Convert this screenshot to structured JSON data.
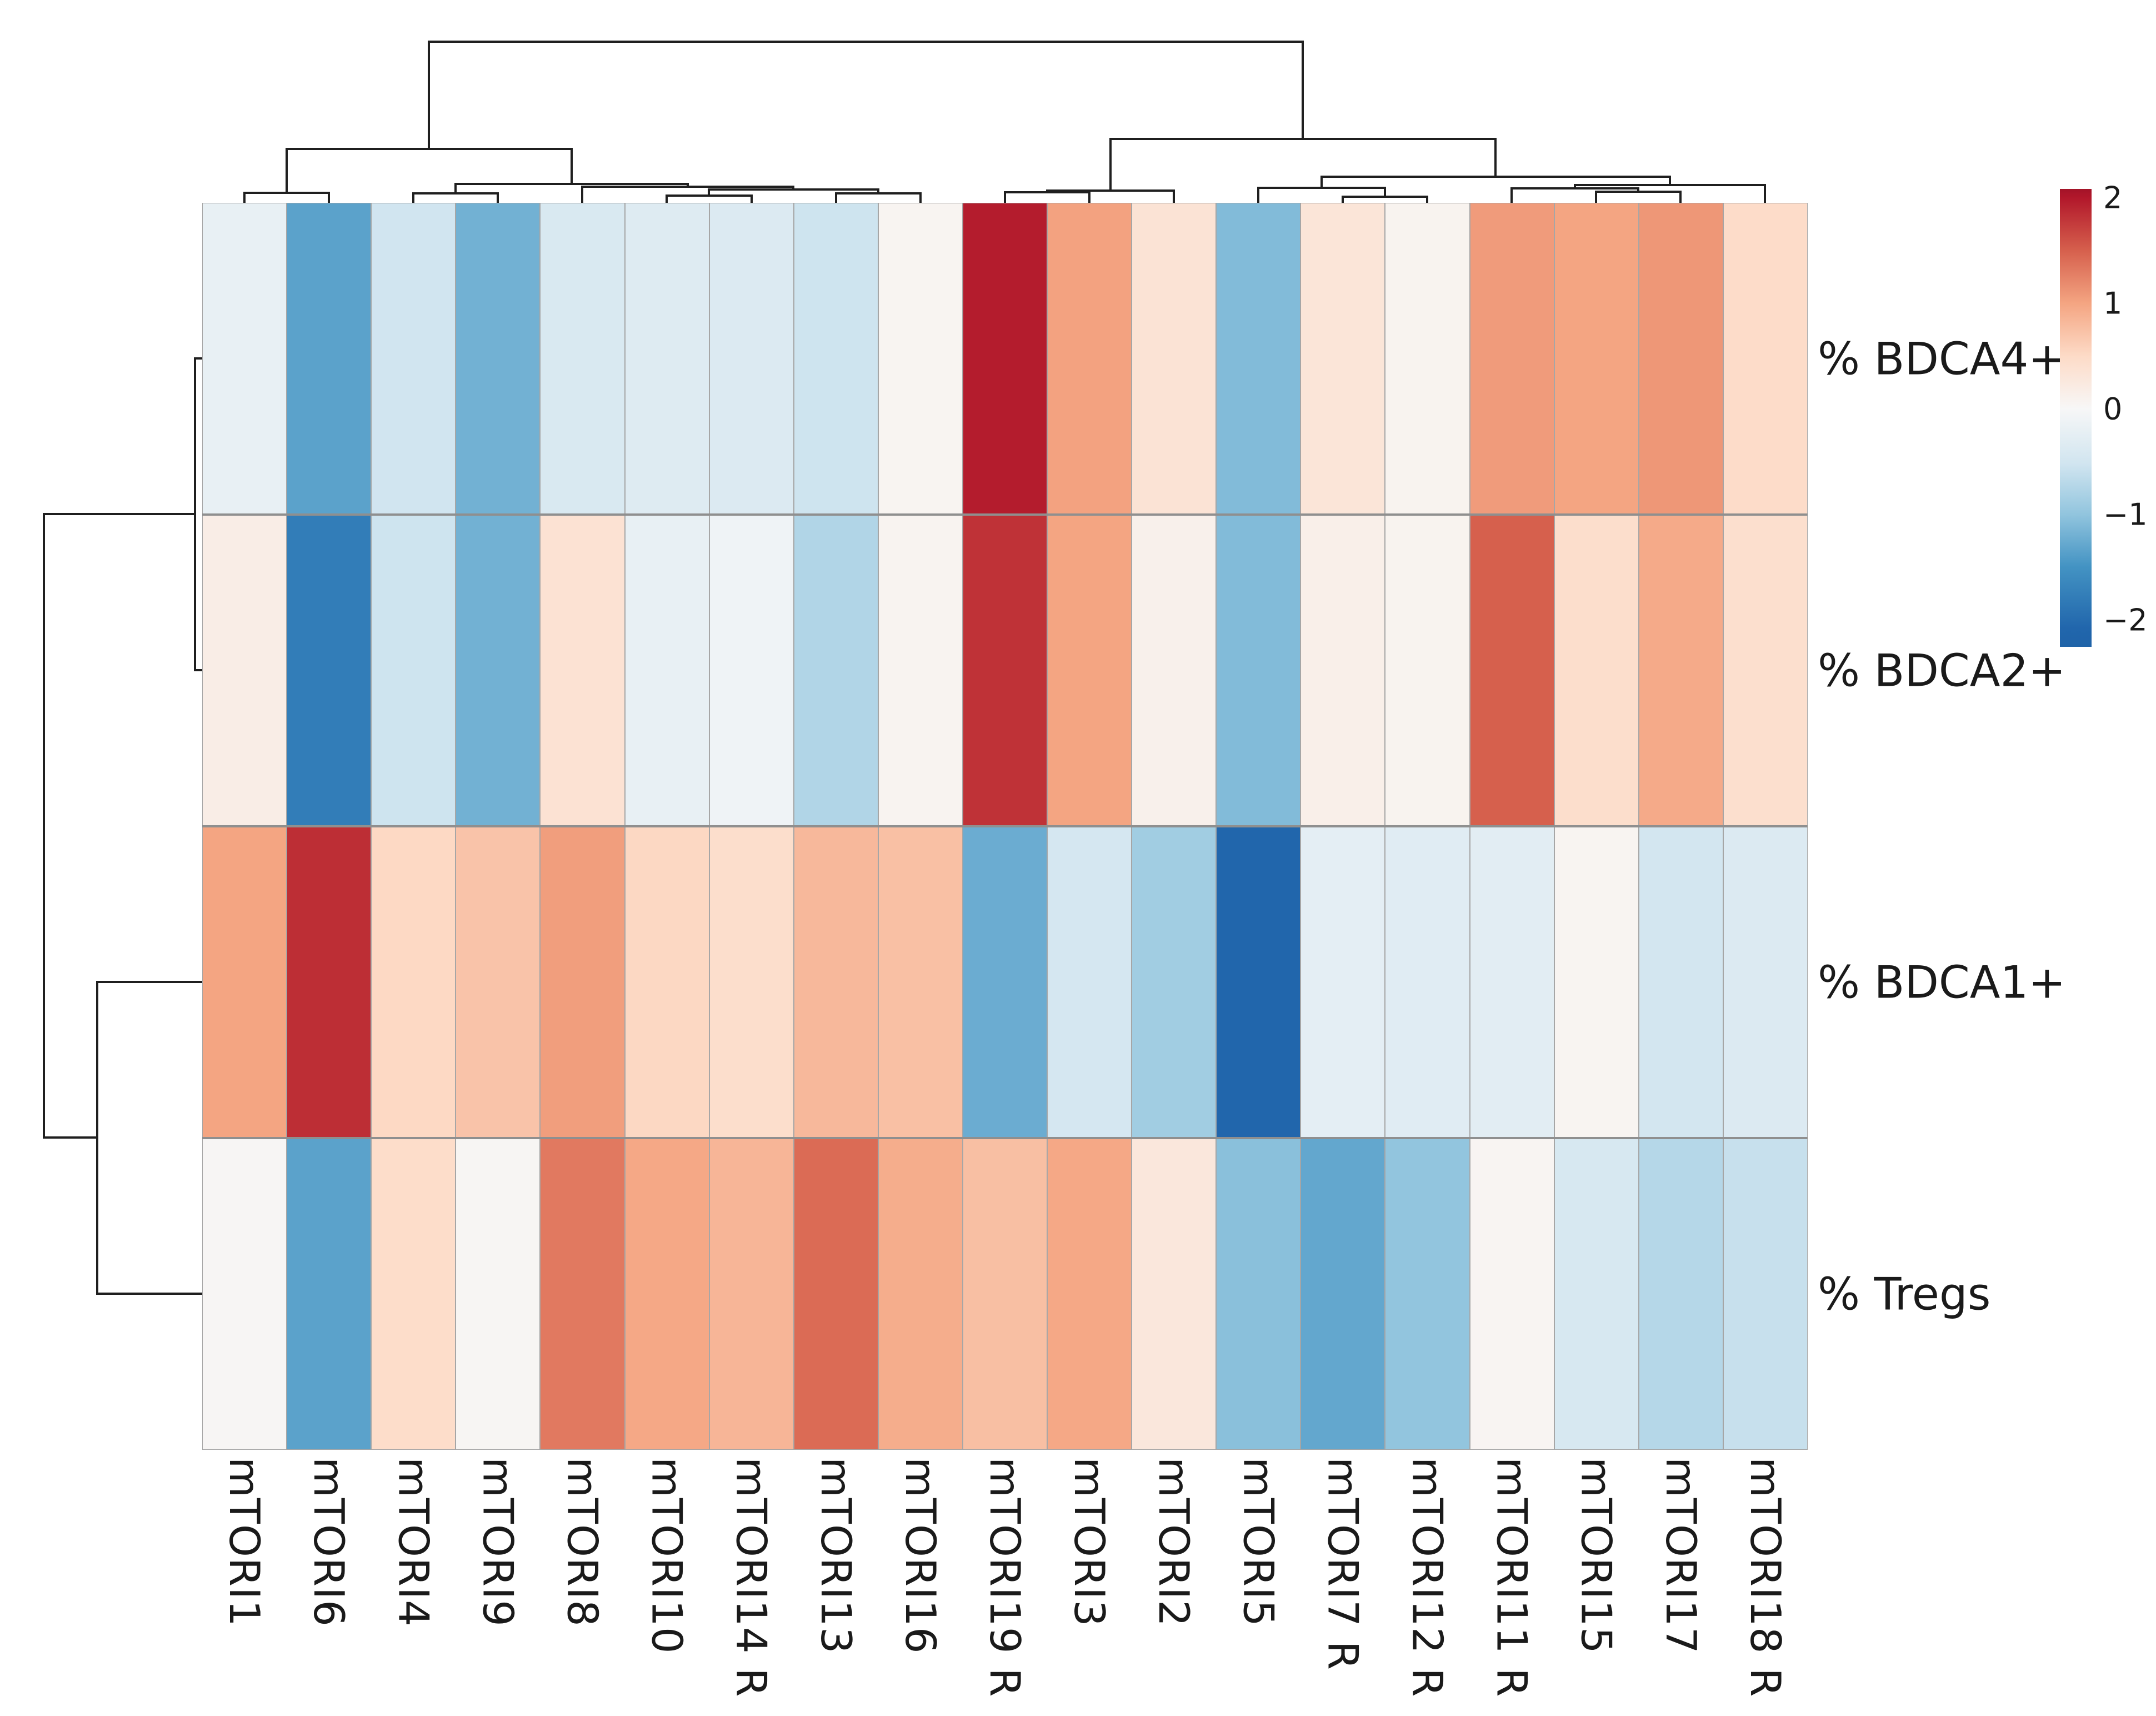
{
  "figure": {
    "background": "#ffffff",
    "text_color": "#1a1a1a",
    "grid_line_color": "#a6a6a6",
    "dendrogram_color": "#1f1f1f"
  },
  "chart_data": {
    "type": "heatmap",
    "title": "",
    "clustered": true,
    "columns": [
      "mTORI1",
      "mTORI6",
      "mTORI4",
      "mTORI9",
      "mTORI8",
      "mTORI10",
      "mTORI14 R",
      "mTORI13",
      "mTORI16",
      "mTORI19 R",
      "mTORI3",
      "mTORI2",
      "mTORI5",
      "mTORI7 R",
      "mTORI12 R",
      "mTORI11 R",
      "mTORI15",
      "mTORI17",
      "mTORI18 R"
    ],
    "rows": [
      "% BDCA4+",
      "% BDCA2+",
      "% BDCA1+",
      "% Tregs"
    ],
    "values": [
      [
        -0.2,
        -1.35,
        -0.5,
        -1.2,
        -0.4,
        -0.33,
        -0.36,
        -0.52,
        0.06,
        1.97,
        1.02,
        0.35,
        -1.1,
        0.32,
        0.08,
        1.07,
        1.0,
        1.1,
        0.48
      ],
      [
        0.18,
        -1.75,
        -0.52,
        -1.2,
        0.38,
        -0.2,
        -0.1,
        -0.75,
        0.07,
        1.82,
        1.0,
        0.12,
        -1.1,
        0.15,
        0.08,
        1.5,
        0.45,
        0.95,
        0.43
      ],
      [
        1.0,
        1.85,
        0.52,
        0.72,
        1.05,
        0.53,
        0.45,
        0.82,
        0.75,
        -1.25,
        -0.45,
        -0.88,
        -2.0,
        -0.25,
        -0.3,
        -0.28,
        0.06,
        -0.48,
        -0.35
      ],
      [
        0.03,
        -1.35,
        0.47,
        0.04,
        1.32,
        0.97,
        0.85,
        1.42,
        0.93,
        0.76,
        0.97,
        0.28,
        -1.05,
        -1.3,
        -1.0,
        0.05,
        -0.42,
        -0.72,
        -0.58
      ]
    ],
    "colormap": "RdBu_r",
    "color_domain": [
      -2.5,
      2.5
    ],
    "colorbar": {
      "position": "top-right",
      "ticks": [
        "2",
        "1",
        "0",
        "−1",
        "−2"
      ],
      "tick_values": [
        2,
        1,
        0,
        -1,
        -2
      ]
    },
    "legend_position": "right",
    "grid": false
  }
}
